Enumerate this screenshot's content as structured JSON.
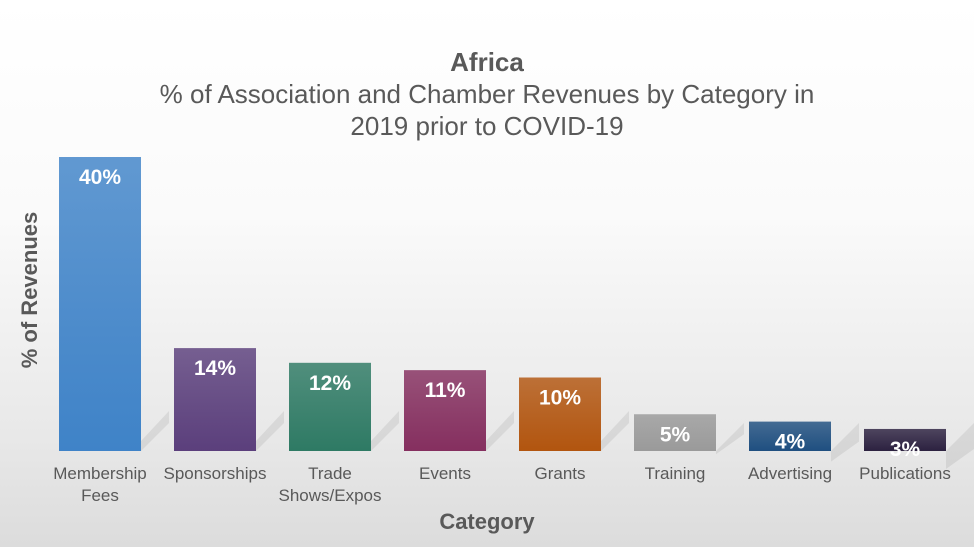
{
  "chart_data": {
    "type": "bar",
    "title": "Africa",
    "subtitle_lines": [
      "% of Association and Chamber Revenues by Category in",
      "2019 prior to COVID-19"
    ],
    "xlabel": "Category",
    "ylabel": "% of Revenues",
    "ylim": [
      0,
      40
    ],
    "grid": false,
    "categories": [
      [
        "Membership",
        "Fees"
      ],
      [
        "Sponsorships"
      ],
      [
        "Trade",
        "Shows/Expos"
      ],
      [
        "Events"
      ],
      [
        "Grants"
      ],
      [
        "Training"
      ],
      [
        "Advertising"
      ],
      [
        "Publications"
      ]
    ],
    "values": [
      40,
      14,
      12,
      11,
      10,
      5,
      4,
      3
    ],
    "value_labels": [
      "40%",
      "14%",
      "12%",
      "11%",
      "10%",
      "5%",
      "4%",
      "3%"
    ],
    "colors": [
      "#3f83c8",
      "#5b3f7c",
      "#2e7a64",
      "#852f5f",
      "#b2550f",
      "#9a9a9a",
      "#1f4f80",
      "#2c2140"
    ]
  }
}
